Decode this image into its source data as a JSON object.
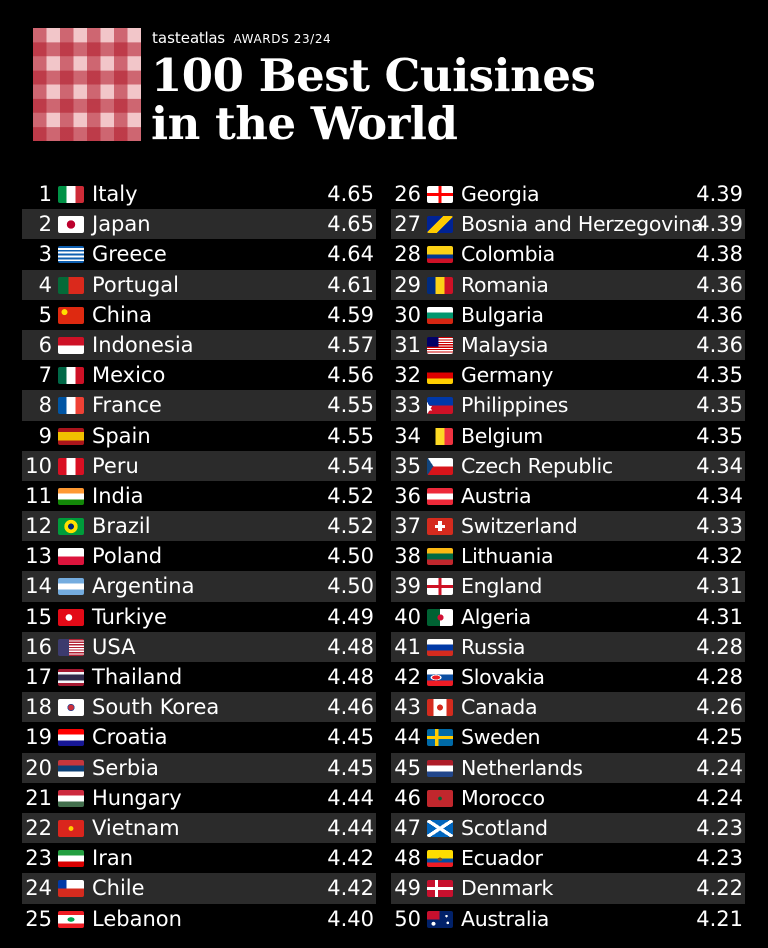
{
  "header": {
    "brand_taste": "taste",
    "brand_atlas": "atlas",
    "brand_suffix": "AWARDS 23/24",
    "title_line1": "100 Best Cuisines",
    "title_line2": "in the World"
  },
  "left_rows": [
    {
      "rank": "1",
      "country": "Italy",
      "score": "4.65",
      "flag": "linear-gradient(90deg,#009246 33.3%,#fff 33.3% 66.6%,#ce2b37 66.6%)"
    },
    {
      "rank": "2",
      "country": "Japan",
      "score": "4.65",
      "flag": "radial-gradient(circle at 50% 50%,#bc002d 26%,#fff 28%)"
    },
    {
      "rank": "3",
      "country": "Greece",
      "score": "4.64",
      "flag": "repeating-linear-gradient(180deg,#0d5eaf 0 1.9px,#fff 1.9px 3.8px)"
    },
    {
      "rank": "4",
      "country": "Portugal",
      "score": "4.61",
      "flag": "linear-gradient(90deg,#046a38 40%,#da291c 40%)"
    },
    {
      "rank": "5",
      "country": "China",
      "score": "4.59",
      "flag": "radial-gradient(circle at 25% 30%,#ffde00 12%,#de2910 14%)"
    },
    {
      "rank": "6",
      "country": "Indonesia",
      "score": "4.57",
      "flag": "linear-gradient(180deg,#ce1126 50%,#fff 50%)"
    },
    {
      "rank": "7",
      "country": "Mexico",
      "score": "4.56",
      "flag": "linear-gradient(90deg,#006847 33.3%,#fff 33.3% 66.6%,#ce1126 66.6%)"
    },
    {
      "rank": "8",
      "country": "France",
      "score": "4.55",
      "flag": "linear-gradient(90deg,#0055a4 33.3%,#fff 33.3% 66.6%,#ef4135 66.6%)"
    },
    {
      "rank": "9",
      "country": "Spain",
      "score": "4.55",
      "flag": "linear-gradient(180deg,#aa151b 25%,#f1bf00 25% 75%,#aa151b 75%)"
    },
    {
      "rank": "10",
      "country": "Peru",
      "score": "4.54",
      "flag": "linear-gradient(90deg,#d91023 33.3%,#fff 33.3% 66.6%,#d91023 66.6%)"
    },
    {
      "rank": "11",
      "country": "India",
      "score": "4.52",
      "flag": "linear-gradient(180deg,#ff9933 33.3%,#fff 33.3% 66.6%,#138808 66.6%)"
    },
    {
      "rank": "12",
      "country": "Brazil",
      "score": "4.52",
      "flag": "radial-gradient(circle at 50% 50%,#002776 18%,#ffdf00 20% 42%,#009c3b 44%)"
    },
    {
      "rank": "13",
      "country": "Poland",
      "score": "4.50",
      "flag": "linear-gradient(180deg,#fff 50%,#dc143c 50%)"
    },
    {
      "rank": "14",
      "country": "Argentina",
      "score": "4.50",
      "flag": "linear-gradient(180deg,#74acdf 33.3%,#fff 33.3% 66.6%,#74acdf 66.6%)"
    },
    {
      "rank": "15",
      "country": "Turkiye",
      "score": "4.49",
      "flag": "radial-gradient(circle at 42% 50%,#fff 18%,#e30a17 20%)"
    },
    {
      "rank": "16",
      "country": "USA",
      "score": "4.48",
      "flag": "linear-gradient(90deg,#3c3b6e 42%,transparent 42%),repeating-linear-gradient(180deg,#b22234 0 1.3px,#fff 1.3px 2.6px)"
    },
    {
      "rank": "17",
      "country": "Thailand",
      "score": "4.48",
      "flag": "linear-gradient(180deg,#a51931 16.6%,#f4f5f8 16.6% 33.3%,#2d2a4a 33.3% 66.6%,#f4f5f8 66.6% 83.3%,#a51931 83.3%)"
    },
    {
      "rank": "18",
      "country": "South Korea",
      "score": "4.46",
      "flag": "radial-gradient(circle at 50% 50%,#cd2e3a 16%,#0047a0 22%,#fff 24%)"
    },
    {
      "rank": "19",
      "country": "Croatia",
      "score": "4.45",
      "flag": "linear-gradient(180deg,#ff0000 33.3%,#fff 33.3% 66.6%,#171796 66.6%)"
    },
    {
      "rank": "20",
      "country": "Serbia",
      "score": "4.45",
      "flag": "linear-gradient(180deg,#c6363c 33.3%,#0c4076 33.3% 66.6%,#fff 66.6%)"
    },
    {
      "rank": "21",
      "country": "Hungary",
      "score": "4.44",
      "flag": "linear-gradient(180deg,#cd2a3e 33.3%,#fff 33.3% 66.6%,#436f4d 66.6%)"
    },
    {
      "rank": "22",
      "country": "Vietnam",
      "score": "4.44",
      "flag": "radial-gradient(circle at 50% 50%,#ffcd00 14%,#da251d 17%)"
    },
    {
      "rank": "23",
      "country": "Iran",
      "score": "4.42",
      "flag": "linear-gradient(180deg,#239f40 33.3%,#fff 33.3% 66.6%,#da0000 66.6%)"
    },
    {
      "rank": "24",
      "country": "Chile",
      "score": "4.42",
      "flag": "linear-gradient(90deg,#0039a6 33%,transparent 33%) top/100% 50% no-repeat,linear-gradient(180deg,#fff 50%,#d52b1e 50%)"
    },
    {
      "rank": "25",
      "country": "Lebanon",
      "score": "4.40",
      "flag": "radial-gradient(ellipse at 50% 50%,#00a651 18%,transparent 20%),linear-gradient(180deg,#ed1c24 25%,#fff 25% 75%,#ed1c24 75%)"
    }
  ],
  "right_rows": [
    {
      "rank": "26",
      "country": "Georgia",
      "score": "4.39",
      "flag": "linear-gradient(90deg,transparent 44%,#ff0000 44% 56%,transparent 56%),linear-gradient(180deg,#fff 42%,#ff0000 42% 58%,#fff 58%)"
    },
    {
      "rank": "27",
      "country": "Bosnia and Herzegovina",
      "score": "4.39",
      "flag": "linear-gradient(135deg,#002395 38%,#fecb00 38% 62%,#002395 62%)"
    },
    {
      "rank": "28",
      "country": "Colombia",
      "score": "4.38",
      "flag": "linear-gradient(180deg,#fcd116 50%,#003893 50% 75%,#ce1126 75%)"
    },
    {
      "rank": "29",
      "country": "Romania",
      "score": "4.36",
      "flag": "linear-gradient(90deg,#002b7f 33.3%,#fcd116 33.3% 66.6%,#ce1126 66.6%)"
    },
    {
      "rank": "30",
      "country": "Bulgaria",
      "score": "4.36",
      "flag": "linear-gradient(180deg,#fff 33.3%,#00966e 33.3% 66.6%,#d62612 66.6%)"
    },
    {
      "rank": "31",
      "country": "Malaysia",
      "score": "4.36",
      "flag": "linear-gradient(90deg,#010066 45%,transparent 45%) top/100% 57% no-repeat,repeating-linear-gradient(180deg,#cc0001 0 1.2px,#fff 1.2px 2.4px)"
    },
    {
      "rank": "32",
      "country": "Germany",
      "score": "4.35",
      "flag": "linear-gradient(180deg,#000 33.3%,#dd0000 33.3% 66.6%,#ffce00 66.6%)"
    },
    {
      "rank": "33",
      "country": "Philippines",
      "score": "4.35",
      "flag": "linear-gradient(60deg,#fff 28%,transparent 28%) left/50% 50% no-repeat,linear-gradient(120deg,#fff 28%,transparent 28%) left bottom/50% 50% no-repeat,linear-gradient(180deg,#0038a8 50%,#ce1126 50%)"
    },
    {
      "rank": "34",
      "country": "Belgium",
      "score": "4.35",
      "flag": "linear-gradient(90deg,#000 33.3%,#fdda24 33.3% 66.6%,#ef3340 66.6%)"
    },
    {
      "rank": "35",
      "country": "Czech Republic",
      "score": "4.34",
      "flag": "linear-gradient(56deg,#11457e 35%,transparent 35%) left top/50% 50% no-repeat,linear-gradient(124deg,#11457e 35%,transparent 35%) left bottom/50% 50% no-repeat,linear-gradient(180deg,#fff 50%,#d7141a 50%)"
    },
    {
      "rank": "36",
      "country": "Austria",
      "score": "4.34",
      "flag": "linear-gradient(180deg,#ed2939 33.3%,#fff 33.3% 66.6%,#ed2939 66.6%)"
    },
    {
      "rank": "37",
      "country": "Switzerland",
      "score": "4.33",
      "flag": "linear-gradient(90deg,transparent 42%,#fff 42% 58%,transparent 58%) center/100% 60% no-repeat,linear-gradient(180deg,transparent 42%,#fff 42% 58%,transparent 58%) center/40% 100% no-repeat,#d52b1e"
    },
    {
      "rank": "38",
      "country": "Lithuania",
      "score": "4.32",
      "flag": "linear-gradient(180deg,#fdb913 33.3%,#006a44 33.3% 66.6%,#c1272d 66.6%)"
    },
    {
      "rank": "39",
      "country": "England",
      "score": "4.31",
      "flag": "linear-gradient(90deg,transparent 44%,#ce1124 44% 56%,transparent 56%),linear-gradient(180deg,#fff 40%,#ce1124 40% 60%,#fff 60%)"
    },
    {
      "rank": "40",
      "country": "Algeria",
      "score": "4.31",
      "flag": "radial-gradient(circle at 52% 50%,#d21034 18%,transparent 20%),linear-gradient(90deg,#006233 50%,#fff 50%)"
    },
    {
      "rank": "41",
      "country": "Russia",
      "score": "4.28",
      "flag": "linear-gradient(180deg,#fff 33.3%,#0039a6 33.3% 66.6%,#d52b1e 66.6%)"
    },
    {
      "rank": "42",
      "country": "Slovakia",
      "score": "4.28",
      "flag": "radial-gradient(ellipse at 35% 50%,#ee1c25 16%,#fff 18% 22%,transparent 24%),linear-gradient(180deg,#fff 33.3%,#0b4ea2 33.3% 66.6%,#ee1c25 66.6%)"
    },
    {
      "rank": "43",
      "country": "Canada",
      "score": "4.26",
      "flag": "radial-gradient(circle at 50% 50%,#d52b1e 18%,transparent 20%),linear-gradient(90deg,#d52b1e 25%,#fff 25% 75%,#d52b1e 75%)"
    },
    {
      "rank": "44",
      "country": "Sweden",
      "score": "4.25",
      "flag": "linear-gradient(90deg,transparent 30%,#fecc02 30% 44%,transparent 44%),linear-gradient(180deg,#006aa7 40%,#fecc02 40% 60%,#006aa7 60%)"
    },
    {
      "rank": "45",
      "country": "Netherlands",
      "score": "4.24",
      "flag": "linear-gradient(180deg,#ae1c28 33.3%,#fff 33.3% 66.6%,#21468b 66.6%)"
    },
    {
      "rank": "46",
      "country": "Morocco",
      "score": "4.24",
      "flag": "radial-gradient(circle at 50% 50%,#006233 10%,#c1272d 14%)"
    },
    {
      "rank": "47",
      "country": "Scotland",
      "score": "4.23",
      "flag": "linear-gradient(33deg,transparent 44%,#fff 44% 56%,transparent 56%),linear-gradient(147deg,transparent 44%,#fff 44% 56%,transparent 56%),#0065bd"
    },
    {
      "rank": "48",
      "country": "Ecuador",
      "score": "4.23",
      "flag": "radial-gradient(ellipse at 50% 55%,#7a4a1f 12%,transparent 14%),linear-gradient(180deg,#ffdd00 50%,#034ea2 50% 75%,#ed1c24 75%)"
    },
    {
      "rank": "49",
      "country": "Denmark",
      "score": "4.22",
      "flag": "linear-gradient(90deg,transparent 30%,#fff 30% 42%,transparent 42%),linear-gradient(180deg,#c8102e 42%,#fff 42% 58%,#c8102e 58%)"
    },
    {
      "rank": "50",
      "country": "Australia",
      "score": "4.21",
      "flag": "radial-gradient(circle at 75% 30%,#fff 5%,transparent 6%),radial-gradient(circle at 80% 70%,#fff 5%,transparent 6%),radial-gradient(circle at 25% 75%,#fff 8%,transparent 9%),linear-gradient(90deg,#c8102e 48%,transparent 48%) top/100% 50% no-repeat,#012169"
    }
  ]
}
